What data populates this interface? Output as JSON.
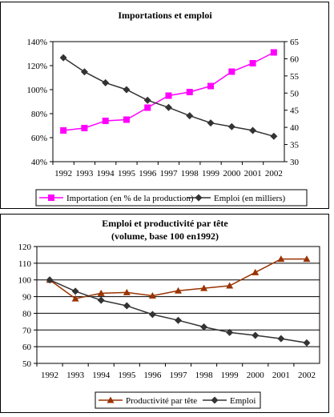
{
  "chart_data": [
    {
      "type": "line",
      "title": "Importations et emploi",
      "x": [
        "1992",
        "1993",
        "1994",
        "1995",
        "1996",
        "1997",
        "1998",
        "1999",
        "2000",
        "2001",
        "2002"
      ],
      "ylim": [
        40,
        140
      ],
      "y_ticks": [
        "40%",
        "60%",
        "80%",
        "100%",
        "120%",
        "140%"
      ],
      "y2lim": [
        30,
        65
      ],
      "y2_ticks": [
        "30",
        "35",
        "40",
        "45",
        "50",
        "55",
        "60",
        "65"
      ],
      "series": [
        {
          "name": "Importation (en % de la production)",
          "axis": "left",
          "color": "#ff00ff",
          "marker": "square",
          "values": [
            66,
            68,
            74,
            75,
            85,
            95,
            98,
            103,
            115,
            122,
            131
          ]
        },
        {
          "name": "Emploi (en milliers)",
          "axis": "right",
          "color": "#333333",
          "marker": "diamond",
          "values": [
            60.3,
            56.2,
            53.0,
            51.0,
            47.9,
            45.8,
            43.4,
            41.3,
            40.2,
            39.1,
            37.4
          ]
        }
      ],
      "legend": "bottom"
    },
    {
      "type": "line",
      "title": "Emploi et productivité par tête",
      "subtitle": "(volume, base 100 en1992)",
      "x": [
        "1992",
        "1993",
        "1994",
        "1995",
        "1996",
        "1997",
        "1998",
        "1999",
        "2000",
        "2001",
        "2002"
      ],
      "ylim": [
        50,
        120
      ],
      "y_ticks": [
        "50",
        "60",
        "70",
        "80",
        "90",
        "100",
        "110",
        "120"
      ],
      "series": [
        {
          "name": "Productivité par tête",
          "color": "#993300",
          "marker": "triangle",
          "values": [
            100,
            88.8,
            92.0,
            92.5,
            90.5,
            93.5,
            95.0,
            96.5,
            104.5,
            112.5,
            112.5
          ]
        },
        {
          "name": "Emploi",
          "color": "#333333",
          "marker": "diamond",
          "values": [
            100,
            93.2,
            87.8,
            84.5,
            79.3,
            75.8,
            71.8,
            68.5,
            66.8,
            64.8,
            62.3
          ]
        }
      ],
      "legend": "bottom"
    }
  ]
}
